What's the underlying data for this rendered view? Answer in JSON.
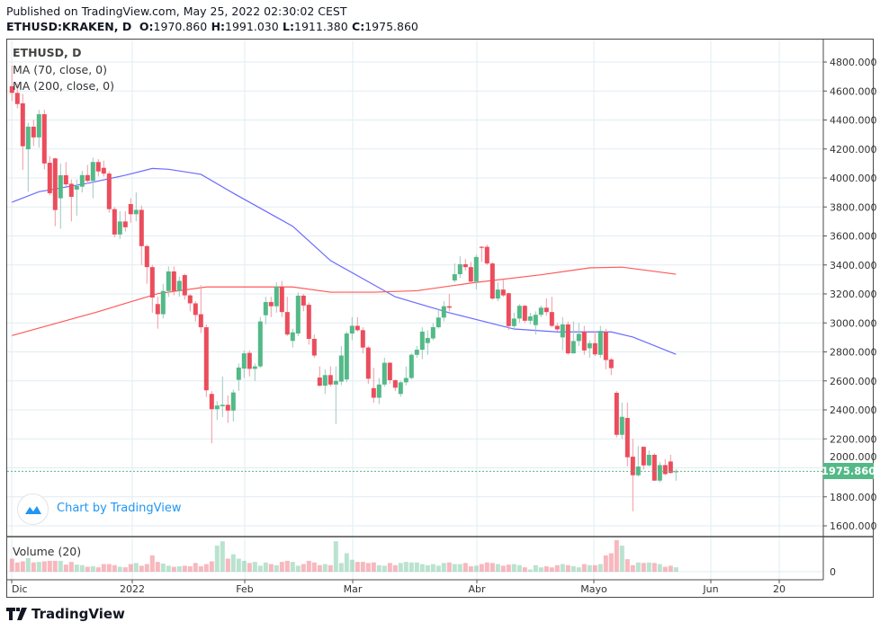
{
  "header": {
    "published": "Published on TradingView.com, May 25, 2022 02:30:02 CEST",
    "symbol": "ETHUSD:KRAKEN, D",
    "o_label": "O:",
    "o": "1970.860",
    "h_label": "H:",
    "h": "1991.030",
    "l_label": "L:",
    "l": "1911.380",
    "c_label": "C:",
    "c": "1975.860"
  },
  "legend": {
    "title": "ETHUSD, D",
    "ma70": "MA (70, close, 0)",
    "ma200": "MA (200, close, 0)",
    "volume": "Volume (20)"
  },
  "badge": {
    "text": "Chart by TradingView",
    "icon": "tradingview-cloud-icon"
  },
  "brand": {
    "text": "TradingView",
    "icon": "tradingview-logo-icon"
  },
  "last_price": "1975.860",
  "colors": {
    "up": "#53b987",
    "down": "#eb4d5c",
    "ma70": "#6a6aff",
    "ma200": "#ff5a5a",
    "grid": "#e1ecf2"
  },
  "chart_data": {
    "type": "candlestick",
    "title": "ETHUSD:KRAKEN, D",
    "ylim": [
      1500,
      4900
    ],
    "y_ticks": [
      "4800.000",
      "4600.000",
      "4400.000",
      "4200.000",
      "4000.000",
      "3800.000",
      "3600.000",
      "3400.000",
      "3200.000",
      "3000.000",
      "2800.000",
      "2600.000",
      "2400.000",
      "2200.000",
      "2000.000",
      "1800.000",
      "1600.000"
    ],
    "x_ticks": [
      "Dic",
      "2022",
      "Feb",
      "Mar",
      "Abr",
      "Mayo",
      "Jun",
      "20"
    ],
    "volume_ticks": [
      "0"
    ],
    "grid": true,
    "ohlc_fields": [
      "open",
      "high",
      "low",
      "close"
    ],
    "candles": [
      [
        4633,
        4775,
        4530,
        4587
      ],
      [
        4587,
        4650,
        4480,
        4510
      ],
      [
        4515,
        4580,
        4056,
        4219
      ],
      [
        4198,
        4380,
        3905,
        4354
      ],
      [
        4354,
        4400,
        4220,
        4280
      ],
      [
        4280,
        4470,
        4210,
        4440
      ],
      [
        4440,
        4470,
        4060,
        4100
      ],
      [
        4105,
        4150,
        3880,
        3895
      ],
      [
        4135,
        4140,
        3667,
        3779
      ],
      [
        3860,
        4100,
        3650,
        4019
      ],
      [
        4019,
        4110,
        3940,
        3956
      ],
      [
        3960,
        3990,
        3700,
        3870
      ],
      [
        3920,
        3990,
        3740,
        3945
      ],
      [
        3940,
        4050,
        3900,
        4020
      ],
      [
        4020,
        4090,
        3960,
        3980
      ],
      [
        3980,
        4140,
        3860,
        4110
      ],
      [
        4110,
        4130,
        4010,
        4045
      ],
      [
        4070,
        4120,
        4010,
        4030
      ],
      [
        4030,
        4045,
        3760,
        3785
      ],
      [
        3785,
        3800,
        3590,
        3610
      ],
      [
        3610,
        3770,
        3580,
        3700
      ],
      [
        3700,
        3770,
        3630,
        3660
      ],
      [
        3820,
        3860,
        3690,
        3750
      ],
      [
        3750,
        3900,
        3700,
        3780
      ],
      [
        3780,
        3810,
        3400,
        3530
      ],
      [
        3530,
        3540,
        3270,
        3385
      ],
      [
        3385,
        3400,
        3070,
        3175
      ],
      [
        3130,
        3180,
        2960,
        3060
      ],
      [
        3060,
        3270,
        3030,
        3220
      ],
      [
        3220,
        3390,
        3180,
        3355
      ],
      [
        3355,
        3390,
        3190,
        3220
      ],
      [
        3220,
        3320,
        3180,
        3290
      ],
      [
        3330,
        3340,
        3160,
        3190
      ],
      [
        3190,
        3200,
        3080,
        3135
      ],
      [
        3135,
        3150,
        3010,
        3055
      ],
      [
        3060,
        3260,
        2930,
        2970
      ],
      [
        2970,
        2990,
        2490,
        2535
      ],
      [
        2510,
        2530,
        2170,
        2405
      ],
      [
        2405,
        2460,
        2330,
        2430
      ],
      [
        2425,
        2630,
        2350,
        2435
      ],
      [
        2435,
        2500,
        2310,
        2395
      ],
      [
        2395,
        2540,
        2320,
        2520
      ],
      [
        2607,
        2720,
        2530,
        2692
      ],
      [
        2685,
        2810,
        2620,
        2790
      ],
      [
        2793,
        2810,
        2630,
        2683
      ],
      [
        2683,
        2720,
        2600,
        2700
      ],
      [
        2700,
        3040,
        2690,
        3010
      ],
      [
        3053,
        3180,
        2990,
        3144
      ],
      [
        3144,
        3180,
        3040,
        3115
      ],
      [
        3115,
        3280,
        3070,
        3250
      ],
      [
        3250,
        3290,
        3040,
        3075
      ],
      [
        3075,
        3180,
        2910,
        2920
      ],
      [
        2876,
        2960,
        2830,
        2935
      ],
      [
        2927,
        3210,
        2910,
        3188
      ],
      [
        3188,
        3200,
        3080,
        3120
      ],
      [
        3125,
        3140,
        2850,
        2890
      ],
      [
        2890,
        2920,
        2760,
        2775
      ],
      [
        2623,
        2700,
        2560,
        2567
      ],
      [
        2567,
        2680,
        2510,
        2640
      ],
      [
        2640,
        2700,
        2560,
        2575
      ],
      [
        2575,
        2700,
        2303,
        2600
      ],
      [
        2595,
        2840,
        2570,
        2775
      ],
      [
        2610,
        2940,
        2590,
        2927
      ],
      [
        2927,
        3040,
        2880,
        2980
      ],
      [
        2980,
        3040,
        2940,
        2950
      ],
      [
        2950,
        2970,
        2790,
        2830
      ],
      [
        2830,
        2840,
        2580,
        2615
      ],
      [
        2550,
        2690,
        2450,
        2484
      ],
      [
        2484,
        2620,
        2440,
        2575
      ],
      [
        2575,
        2760,
        2560,
        2725
      ],
      [
        2725,
        2730,
        2580,
        2605
      ],
      [
        2605,
        2610,
        2530,
        2553
      ],
      [
        2510,
        2600,
        2490,
        2590
      ],
      [
        2590,
        2700,
        2570,
        2620
      ],
      [
        2620,
        2790,
        2610,
        2780
      ],
      [
        2780,
        2840,
        2760,
        2815
      ],
      [
        2815,
        2970,
        2750,
        2940
      ],
      [
        2861,
        2950,
        2780,
        2896
      ],
      [
        2893,
        3000,
        2880,
        2971
      ],
      [
        2970,
        3100,
        2960,
        3037
      ],
      [
        3037,
        3150,
        3010,
        3115
      ],
      [
        3115,
        3200,
        3080,
        3105
      ],
      [
        3293,
        3410,
        3280,
        3336
      ],
      [
        3336,
        3460,
        3310,
        3405
      ],
      [
        3405,
        3440,
        3360,
        3385
      ],
      [
        3385,
        3420,
        3270,
        3285
      ],
      [
        3285,
        3470,
        3230,
        3455
      ],
      [
        3525,
        3530,
        3420,
        3518
      ],
      [
        3525,
        3540,
        3400,
        3410
      ],
      [
        3410,
        3420,
        3160,
        3168
      ],
      [
        3168,
        3280,
        3150,
        3230
      ],
      [
        3230,
        3300,
        3180,
        3190
      ],
      [
        3205,
        3210,
        2950,
        2978
      ],
      [
        2978,
        3070,
        2950,
        3030
      ],
      [
        3030,
        3130,
        3000,
        3118
      ],
      [
        3118,
        3125,
        3000,
        3015
      ],
      [
        3015,
        3070,
        2990,
        3045
      ],
      [
        2985,
        3080,
        2920,
        3056
      ],
      [
        3056,
        3120,
        3040,
        3105
      ],
      [
        3105,
        3170,
        3050,
        3075
      ],
      [
        3075,
        3180,
        2970,
        2980
      ],
      [
        2980,
        3000,
        2940,
        2955
      ],
      [
        2900,
        3040,
        2810,
        2990
      ],
      [
        2990,
        3010,
        2780,
        2790
      ],
      [
        2790,
        3010,
        2790,
        2875
      ],
      [
        2875,
        3000,
        2840,
        2925
      ],
      [
        2940,
        2980,
        2780,
        2810
      ],
      [
        2825,
        2880,
        2760,
        2860
      ],
      [
        2860,
        2940,
        2770,
        2783
      ],
      [
        2780,
        2980,
        2760,
        2945
      ],
      [
        2938,
        2960,
        2680,
        2744
      ],
      [
        2748,
        2760,
        2640,
        2688
      ],
      [
        2518,
        2530,
        2210,
        2228
      ],
      [
        2228,
        2450,
        2200,
        2352
      ],
      [
        2344,
        2450,
        2010,
        2073
      ],
      [
        2077,
        2200,
        1700,
        1949
      ],
      [
        1949,
        2150,
        1940,
        2009
      ],
      [
        2145,
        2150,
        1990,
        2017
      ],
      [
        2017,
        2120,
        2010,
        2090
      ],
      [
        2090,
        2100,
        1910,
        1912
      ],
      [
        1912,
        2040,
        1900,
        2019
      ],
      [
        2019,
        2060,
        1950,
        1957
      ],
      [
        2044,
        2090,
        1960,
        1965
      ],
      [
        1970.86,
        1991.03,
        1911.38,
        1975.86
      ]
    ],
    "volume_relative": [
      24,
      17,
      19,
      25,
      17,
      18,
      19,
      20,
      20,
      20,
      13,
      18,
      13,
      12,
      9,
      10,
      8,
      14,
      14,
      12,
      9,
      8,
      14,
      16,
      11,
      14,
      30,
      18,
      15,
      11,
      9,
      10,
      11,
      10,
      16,
      10,
      14,
      19,
      48,
      56,
      24,
      32,
      24,
      20,
      16,
      18,
      11,
      17,
      14,
      12,
      18,
      20,
      18,
      11,
      14,
      20,
      17,
      12,
      14,
      12,
      56,
      16,
      34,
      22,
      18,
      18,
      16,
      17,
      12,
      11,
      16,
      12,
      16,
      18,
      17,
      17,
      14,
      12,
      14,
      11,
      16,
      17,
      14,
      14,
      16,
      10,
      11,
      14,
      17,
      16,
      14,
      11,
      13,
      14,
      12,
      8,
      4,
      12,
      8,
      10,
      8,
      12,
      14,
      12,
      10,
      8,
      14,
      12,
      12,
      14,
      30,
      34,
      58,
      48,
      23,
      12,
      17,
      16,
      17,
      16,
      14,
      9,
      11,
      8
    ],
    "series": [
      {
        "name": "MA (70, close, 0)",
        "points_index_value": [
          [
            1,
            3833
          ],
          [
            6,
            3905
          ],
          [
            15,
            3963
          ],
          [
            22,
            4019
          ],
          [
            27,
            4066
          ],
          [
            30,
            4060
          ],
          [
            36,
            4025
          ],
          [
            42,
            3895
          ],
          [
            50,
            3729
          ],
          [
            53,
            3667
          ],
          [
            60,
            3430
          ],
          [
            72,
            3180
          ],
          [
            82,
            3070
          ],
          [
            94,
            2958
          ],
          [
            102,
            2938
          ],
          [
            112,
            2938
          ],
          [
            116,
            2903
          ],
          [
            124,
            2783
          ]
        ]
      },
      {
        "name": "MA (200, close, 0)",
        "points_index_value": [
          [
            1,
            2913
          ],
          [
            17,
            3078
          ],
          [
            28,
            3202
          ],
          [
            37,
            3248
          ],
          [
            53,
            3248
          ],
          [
            60,
            3212
          ],
          [
            68,
            3212
          ],
          [
            76,
            3222
          ],
          [
            86,
            3275
          ],
          [
            99,
            3332
          ],
          [
            108,
            3380
          ],
          [
            114,
            3385
          ],
          [
            124,
            3336
          ]
        ]
      }
    ],
    "last_close": 1975.86
  }
}
